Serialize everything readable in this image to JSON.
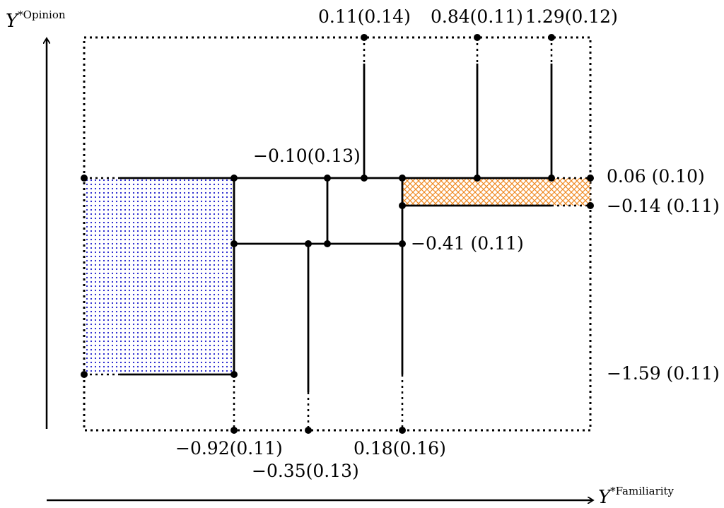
{
  "axes": {
    "y_var": "Y",
    "y_sup": "*Opinion",
    "x_var": "Y",
    "x_sup": "*Familiarity"
  },
  "thresholds": {
    "opinion_top_1": "0.11(0.14)",
    "opinion_top_2": "0.84(0.11)",
    "opinion_top_3": "1.29(0.12)",
    "opinion_upper": "0.06 (0.10)",
    "opinion_mid_right": "−0.14 (0.11)",
    "opinion_mid_center": "−0.41 (0.11)",
    "opinion_mid_inner": "−0.10(0.13)",
    "opinion_lower": "−1.59 (0.11)",
    "familiarity_1": "−0.92(0.11)",
    "familiarity_2": "−0.35(0.13)",
    "familiarity_3": "0.18(0.16)"
  },
  "colors": {
    "ink": "#000000",
    "dotted_fill": "#1a1acc",
    "hatch_fill": "#f08a24"
  }
}
